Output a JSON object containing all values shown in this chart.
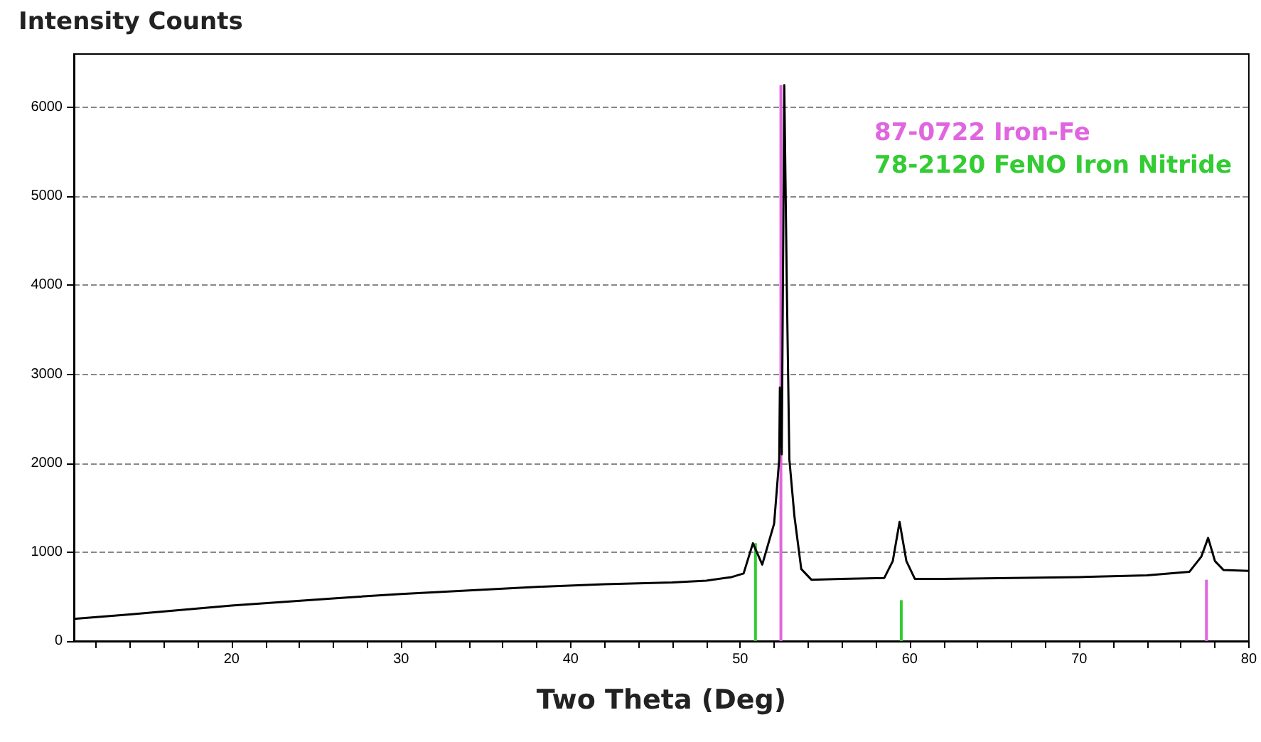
{
  "chart_data": {
    "type": "line",
    "title": "Intensity Counts",
    "xlabel": "Two Theta (Deg)",
    "xlim": [
      10.7,
      80
    ],
    "ylim": [
      0,
      6600
    ],
    "xticks": [
      {
        "value": 12,
        "label": null
      },
      {
        "value": 14,
        "label": null
      },
      {
        "value": 16,
        "label": null
      },
      {
        "value": 18,
        "label": null
      },
      20,
      {
        "value": 22,
        "label": null
      },
      {
        "value": 24,
        "label": null
      },
      {
        "value": 26,
        "label": null
      },
      {
        "value": 28,
        "label": null
      },
      30,
      {
        "value": 32,
        "label": null
      },
      {
        "value": 34,
        "label": null
      },
      {
        "value": 36,
        "label": null
      },
      {
        "value": 38,
        "label": null
      },
      40,
      {
        "value": 42,
        "label": null
      },
      {
        "value": 44,
        "label": null
      },
      {
        "value": 46,
        "label": null
      },
      {
        "value": 48,
        "label": null
      },
      50,
      {
        "value": 52,
        "label": null
      },
      {
        "value": 54,
        "label": null
      },
      {
        "value": 56,
        "label": null
      },
      {
        "value": 58,
        "label": null
      },
      60,
      {
        "value": 62,
        "label": null
      },
      {
        "value": 64,
        "label": null
      },
      {
        "value": 66,
        "label": null
      },
      {
        "value": 68,
        "label": null
      },
      70,
      {
        "value": 72,
        "label": null
      },
      {
        "value": 74,
        "label": null
      },
      {
        "value": 76,
        "label": null
      },
      {
        "value": 78,
        "label": null
      },
      80
    ],
    "yticks": [
      0,
      1000,
      2000,
      3000,
      4000,
      5000,
      6000
    ],
    "grid": "y",
    "legend": "top right",
    "marker": "none",
    "line_style": "solid",
    "series": [
      {
        "color": "#000000",
        "x": [
          10.7,
          14,
          17,
          20,
          23,
          26,
          30,
          34,
          38,
          42,
          46,
          48,
          49.5,
          50.2,
          50.75,
          51.3,
          52.0,
          52.3,
          52.34,
          52.45,
          52.6,
          52.75,
          52.9,
          53.2,
          53.6,
          54.2,
          56,
          58.5,
          59.0,
          59.4,
          59.8,
          60.3,
          62,
          66,
          70,
          74,
          76.5,
          77.2,
          77.6,
          78.0,
          78.5,
          80
        ],
        "values": [
          250,
          300,
          350,
          400,
          440,
          480,
          530,
          570,
          610,
          640,
          660,
          680,
          720,
          760,
          1100,
          860,
          1320,
          2040,
          2850,
          2100,
          6250,
          3970,
          2040,
          1400,
          810,
          690,
          700,
          710,
          900,
          1340,
          900,
          700,
          700,
          710,
          720,
          740,
          780,
          950,
          1160,
          900,
          800,
          790
        ]
      },
      {
        "type": "bar",
        "name": "87-0722 Iron-Fe",
        "color": "#e066e0",
        "x": [
          52.4,
          77.5
        ],
        "values": [
          6250,
          690
        ]
      },
      {
        "type": "bar",
        "name": "78-2120 FeNO Iron Nitride",
        "color": "#33cc33",
        "x": [
          50.9,
          59.5
        ],
        "values": [
          1100,
          460
        ]
      }
    ]
  }
}
